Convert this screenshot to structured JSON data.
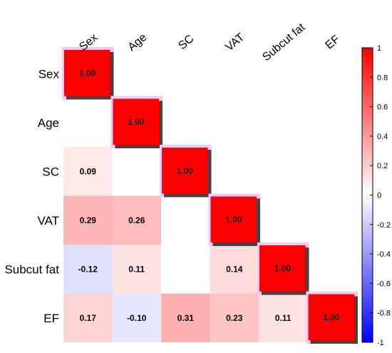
{
  "chart_data": {
    "type": "heatmap",
    "title": "",
    "variables": [
      "Sex",
      "Age",
      "SC",
      "VAT",
      "Subcut fat",
      "EF"
    ],
    "matrix": [
      [
        1.0,
        null,
        null,
        null,
        null,
        null
      ],
      [
        null,
        1.0,
        null,
        null,
        null,
        null
      ],
      [
        0.09,
        null,
        1.0,
        null,
        null,
        null
      ],
      [
        0.29,
        0.26,
        null,
        1.0,
        null,
        null
      ],
      [
        -0.12,
        0.11,
        null,
        0.14,
        1.0,
        null
      ],
      [
        0.17,
        -0.1,
        0.31,
        0.23,
        0.11,
        1.0
      ]
    ],
    "colorbar": {
      "range": [
        -1,
        1
      ],
      "ticks": [
        "1",
        "0.8",
        "0.6",
        "0.4",
        "0.2",
        "0",
        "-0.2",
        "-0.4",
        "-0.6",
        "-0.8",
        "-1"
      ],
      "colors": {
        "negative": "#0000ff",
        "zero": "#ffffff",
        "positive": "#ff0000"
      }
    },
    "show_upper_triangle": false
  }
}
